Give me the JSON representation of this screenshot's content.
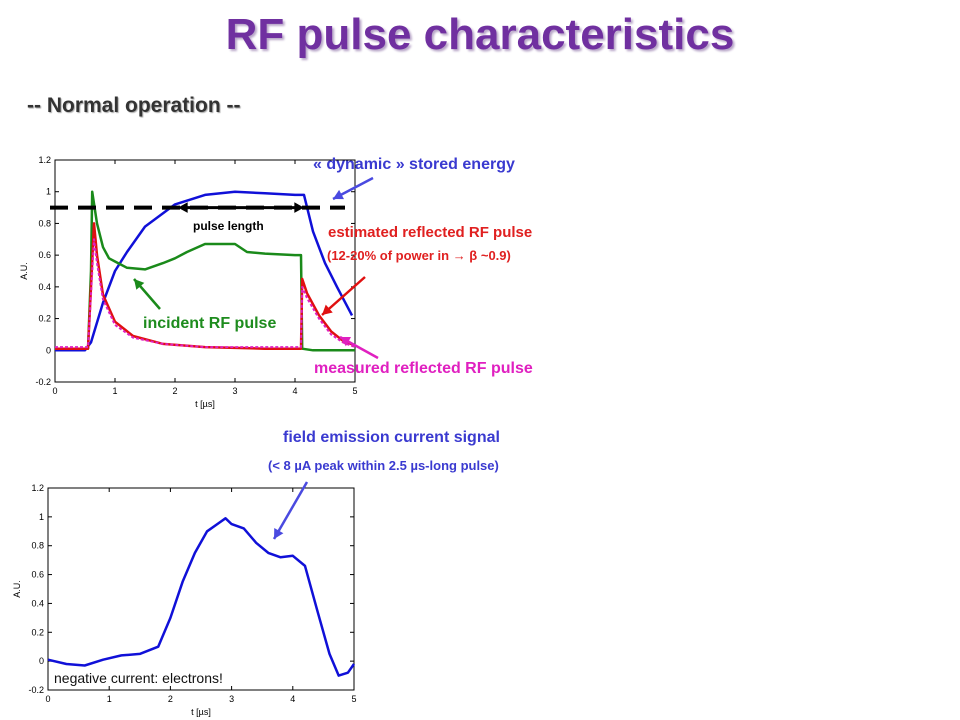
{
  "title": "RF pulse characteristics",
  "subtitle": "-- Normal operation --",
  "labels": {
    "stored_energy": "« dynamic » stored energy",
    "estimated_reflected": "estimated reflected RF pulse",
    "estimated_reflected_note": "(12-20% of power in → β ~0.9)",
    "pulse_length": "pulse length",
    "incident": "incident RF pulse",
    "measured_reflected": "measured reflected RF pulse",
    "field_emission": "field emission current signal",
    "field_emission_note": "(< 8 µA peak within 2.5 µs-long pulse)",
    "negative_current": "negative current: electrons!"
  },
  "colors": {
    "title": "#7030a0",
    "blue": "#1010d8",
    "green": "#1a8a1a",
    "red": "#e01010",
    "magenta": "#e020c0",
    "arrow_blue": "#4a4ae0"
  },
  "chart_data": [
    {
      "type": "line",
      "xlabel": "t [µs]",
      "ylabel": "A.U.",
      "xlim": [
        0,
        5
      ],
      "ylim": [
        -0.2,
        1.2
      ],
      "xticks": [
        "0",
        "1",
        "2",
        "3",
        "4",
        "5"
      ],
      "yticks": [
        "-0.2",
        "0",
        "0.2",
        "0.4",
        "0.6",
        "0.8",
        "1",
        "1.2"
      ],
      "threshold_line": 0.9,
      "series": [
        {
          "name": "« dynamic » stored energy",
          "color": "#1010d8",
          "x": [
            0,
            0.5,
            0.6,
            0.8,
            1.0,
            1.2,
            1.5,
            2.0,
            2.5,
            3.0,
            3.5,
            4.0,
            4.15,
            4.3,
            4.5,
            4.7,
            4.95
          ],
          "y": [
            0,
            0,
            0.05,
            0.3,
            0.5,
            0.62,
            0.78,
            0.92,
            0.98,
            1.0,
            0.99,
            0.98,
            0.98,
            0.75,
            0.55,
            0.4,
            0.22
          ]
        },
        {
          "name": "incident RF pulse",
          "color": "#1a8a1a",
          "x": [
            0,
            0.55,
            0.6,
            0.62,
            0.7,
            0.8,
            0.9,
            1.0,
            1.2,
            1.5,
            1.8,
            2.0,
            2.2,
            2.5,
            3.0,
            3.2,
            3.5,
            4.0,
            4.1,
            4.12,
            4.3,
            4.6,
            5.0
          ],
          "y": [
            0.01,
            0.01,
            0.5,
            1.0,
            0.8,
            0.65,
            0.58,
            0.56,
            0.52,
            0.51,
            0.55,
            0.58,
            0.62,
            0.67,
            0.67,
            0.62,
            0.61,
            0.6,
            0.6,
            0.01,
            0.0,
            0.0,
            0.0
          ]
        },
        {
          "name": "estimated reflected RF pulse",
          "color": "#e01010",
          "x": [
            0,
            0.55,
            0.6,
            0.65,
            0.7,
            0.8,
            1.0,
            1.3,
            1.8,
            2.5,
            3.5,
            4.1,
            4.12,
            4.2,
            4.4,
            4.6,
            4.8,
            5.0
          ],
          "y": [
            0.01,
            0.01,
            0.4,
            0.8,
            0.6,
            0.35,
            0.18,
            0.09,
            0.04,
            0.02,
            0.01,
            0.01,
            0.45,
            0.36,
            0.22,
            0.12,
            0.06,
            0.03
          ]
        },
        {
          "name": "measured reflected RF pulse",
          "color": "#e020c0",
          "x": [
            0,
            0.55,
            0.6,
            0.65,
            0.7,
            0.8,
            1.0,
            1.3,
            1.8,
            2.5,
            3.5,
            4.1,
            4.12,
            4.2,
            4.4,
            4.6,
            4.8,
            5.0
          ],
          "y": [
            0.02,
            0.02,
            0.35,
            0.7,
            0.55,
            0.32,
            0.16,
            0.08,
            0.04,
            0.02,
            0.02,
            0.02,
            0.4,
            0.33,
            0.2,
            0.1,
            0.05,
            0.02
          ]
        }
      ]
    },
    {
      "type": "line",
      "xlabel": "t [µs]",
      "ylabel": "A.U.",
      "xlim": [
        0,
        5
      ],
      "ylim": [
        -0.2,
        1.2
      ],
      "xticks": [
        "0",
        "1",
        "2",
        "3",
        "4",
        "5"
      ],
      "yticks": [
        "-0.2",
        "0",
        "0.2",
        "0.4",
        "0.6",
        "0.8",
        "1",
        "1.2"
      ],
      "series": [
        {
          "name": "field emission current signal",
          "color": "#1010d8",
          "x": [
            0,
            0.3,
            0.6,
            0.9,
            1.2,
            1.5,
            1.8,
            2.0,
            2.2,
            2.4,
            2.6,
            2.8,
            2.9,
            3.0,
            3.2,
            3.4,
            3.6,
            3.8,
            4.0,
            4.2,
            4.4,
            4.6,
            4.75,
            4.9,
            5.0
          ],
          "y": [
            0.01,
            -0.02,
            -0.03,
            0.01,
            0.04,
            0.05,
            0.1,
            0.3,
            0.55,
            0.75,
            0.9,
            0.96,
            0.99,
            0.95,
            0.92,
            0.82,
            0.75,
            0.72,
            0.73,
            0.66,
            0.35,
            0.05,
            -0.1,
            -0.08,
            -0.02
          ]
        }
      ]
    }
  ]
}
